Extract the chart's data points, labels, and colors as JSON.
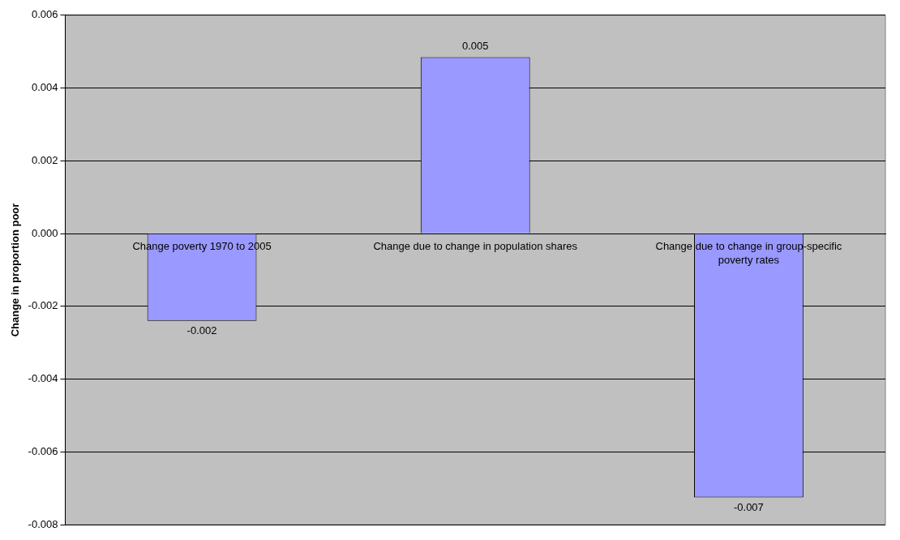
{
  "chart_data": {
    "type": "bar",
    "ylabel": "Change in proportion poor",
    "categories": [
      "Change poverty 1970 to 2005",
      "Change due to change in population shares",
      "Change due to change in group-specific poverty rates"
    ],
    "values": [
      -0.0024,
      0.00485,
      -0.00725
    ],
    "value_labels": [
      "-0.002",
      "0.005",
      "-0.007"
    ],
    "color": "#9999ff",
    "ylim": [
      -0.008,
      0.006
    ],
    "yticks": [
      -0.008,
      -0.006,
      -0.004,
      -0.002,
      {
        "value": 0,
        "label": "0.000"
      },
      0.002,
      0.004,
      0.006
    ],
    "grid": "y",
    "legend": false
  }
}
